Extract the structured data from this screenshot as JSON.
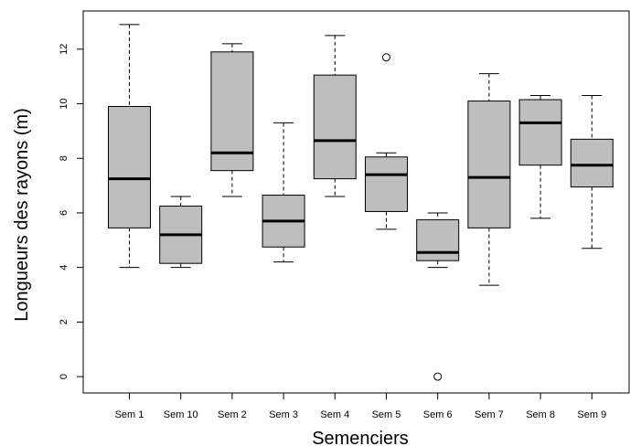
{
  "chart_data": {
    "type": "boxplot",
    "title": "",
    "xlabel": "Semenciers",
    "ylabel": "Longueurs des rayons (m)",
    "ylim": [
      -0.6,
      13.4
    ],
    "y_ticks": [
      0,
      2,
      4,
      6,
      8,
      10,
      12
    ],
    "grid": false,
    "legend": "none",
    "colors": {
      "box_fill": "#bebebe",
      "stroke": "#000000",
      "background": "#ffffff"
    },
    "categories": [
      "Sem 1",
      "Sem 10",
      "Sem 2",
      "Sem 3",
      "Sem 4",
      "Sem 5",
      "Sem 6",
      "Sem 7",
      "Sem 8",
      "Sem 9"
    ],
    "boxes": [
      {
        "category": "Sem 1",
        "min": 4.0,
        "q1": 5.45,
        "median": 7.25,
        "q3": 9.9,
        "max": 12.9,
        "outliers": []
      },
      {
        "category": "Sem 10",
        "min": 4.0,
        "q1": 4.15,
        "median": 5.2,
        "q3": 6.25,
        "max": 6.6,
        "outliers": []
      },
      {
        "category": "Sem 2",
        "min": 6.6,
        "q1": 7.55,
        "median": 8.2,
        "q3": 11.9,
        "max": 12.2,
        "outliers": []
      },
      {
        "category": "Sem 3",
        "min": 4.2,
        "q1": 4.75,
        "median": 5.7,
        "q3": 6.65,
        "max": 9.3,
        "outliers": []
      },
      {
        "category": "Sem 4",
        "min": 6.6,
        "q1": 7.25,
        "median": 8.65,
        "q3": 11.05,
        "max": 12.5,
        "outliers": []
      },
      {
        "category": "Sem 5",
        "min": 5.4,
        "q1": 6.05,
        "median": 7.4,
        "q3": 8.05,
        "max": 8.2,
        "outliers": [
          11.7
        ]
      },
      {
        "category": "Sem 6",
        "min": 4.0,
        "q1": 4.25,
        "median": 4.55,
        "q3": 5.75,
        "max": 6.0,
        "outliers": [
          0.0
        ]
      },
      {
        "category": "Sem 7",
        "min": 3.35,
        "q1": 5.45,
        "median": 7.3,
        "q3": 10.1,
        "max": 11.1,
        "outliers": []
      },
      {
        "category": "Sem 8",
        "min": 5.8,
        "q1": 7.75,
        "median": 9.3,
        "q3": 10.15,
        "max": 10.3,
        "outliers": []
      },
      {
        "category": "Sem 9",
        "min": 4.7,
        "q1": 6.95,
        "median": 7.75,
        "q3": 8.7,
        "max": 10.3,
        "outliers": []
      }
    ]
  }
}
